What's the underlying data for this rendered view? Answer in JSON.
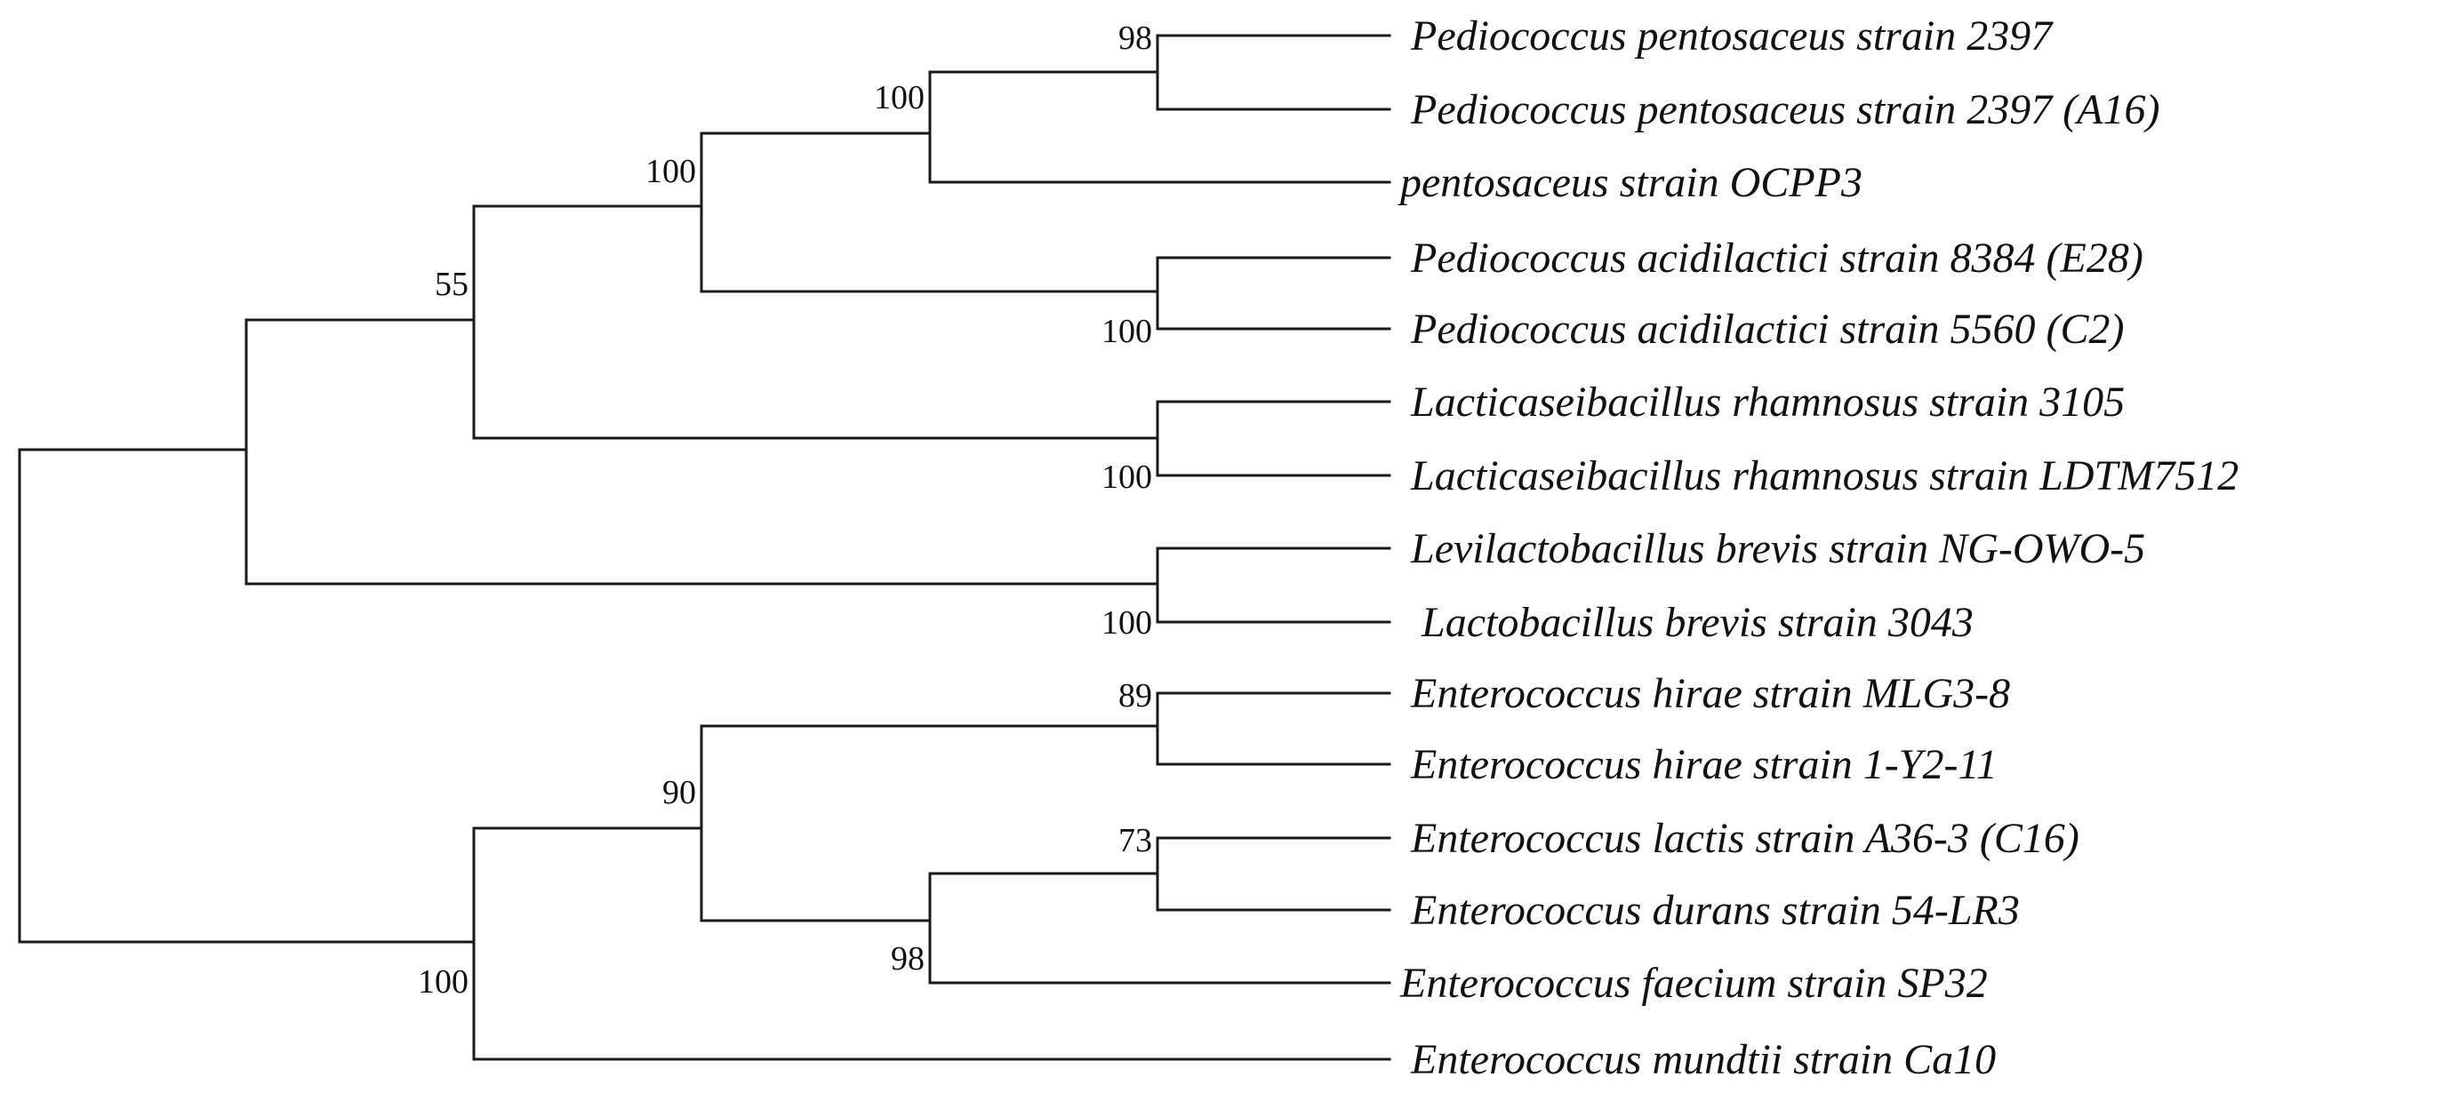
{
  "tree": {
    "taxa": [
      "Pediococcus pentosaceus strain 2397",
      "Pediococcus pentosaceus strain 2397  (A16)",
      "pentosaceus strain OCPP3",
      "Pediococcus acidilactici strain 8384  (E28)",
      "Pediococcus acidilactici strain 5560  (C2)",
      "Lacticaseibacillus rhamnosus strain 3105",
      "Lacticaseibacillus rhamnosus strain LDTM7512",
      "Levilactobacillus brevis strain NG-OWO-5",
      " Lactobacillus brevis strain 3043",
      "Enterococcus hirae strain MLG3-8",
      "Enterococcus hirae strain 1-Y2-11",
      "Enterococcus lactis strain A36-3 (C16)",
      "Enterococcus durans strain 54-LR3",
      "Enterococcus faecium strain SP32",
      "Enterococcus mundtii strain Ca10"
    ],
    "support_values": {
      "pentosaceus_2397_pair": "98",
      "pentosaceus_clade": "100",
      "pediococcus_clade": "100",
      "acidilactici_pair": "100",
      "upper_clade": "55",
      "rhamnosus_pair": "100",
      "brevis_pair": "100",
      "hirae_pair": "89",
      "enterococcus_core": "90",
      "lactis_durans_pair": "73",
      "lactis_durans_faecium": "98",
      "enterococcus_clade": "100"
    }
  }
}
